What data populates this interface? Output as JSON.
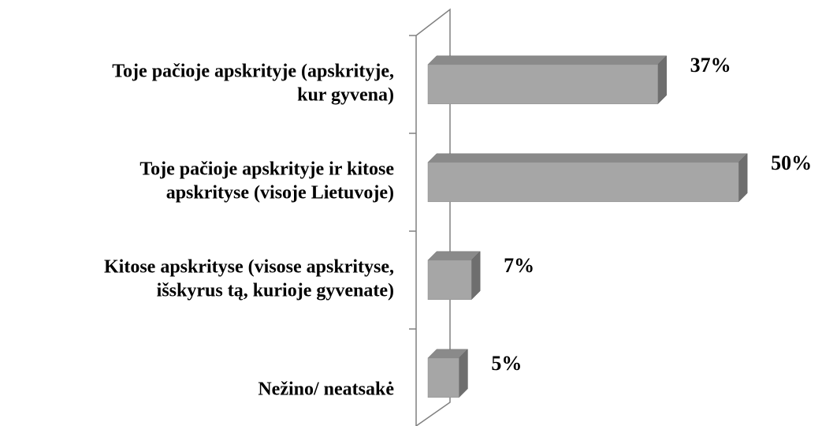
{
  "chart_data": {
    "type": "bar",
    "orientation": "horizontal",
    "categories": [
      [
        "Toje pačioje apskrityje (apskrityje,",
        "kur gyvena)"
      ],
      [
        "Toje pačioje apskrityje ir kitose",
        "apskrityse (visoje Lietuvoje)"
      ],
      [
        "Kitose apskrityse (visose apskrityse,",
        "išskyrus tą, kurioje gyvenate)"
      ],
      [
        "Nežino/ neatsakė"
      ]
    ],
    "values": [
      37,
      50,
      7,
      5
    ],
    "value_labels": [
      "37%",
      "50%",
      "7%",
      "5%"
    ],
    "color": "#a6a6a6",
    "xlim": [
      0,
      60
    ]
  }
}
